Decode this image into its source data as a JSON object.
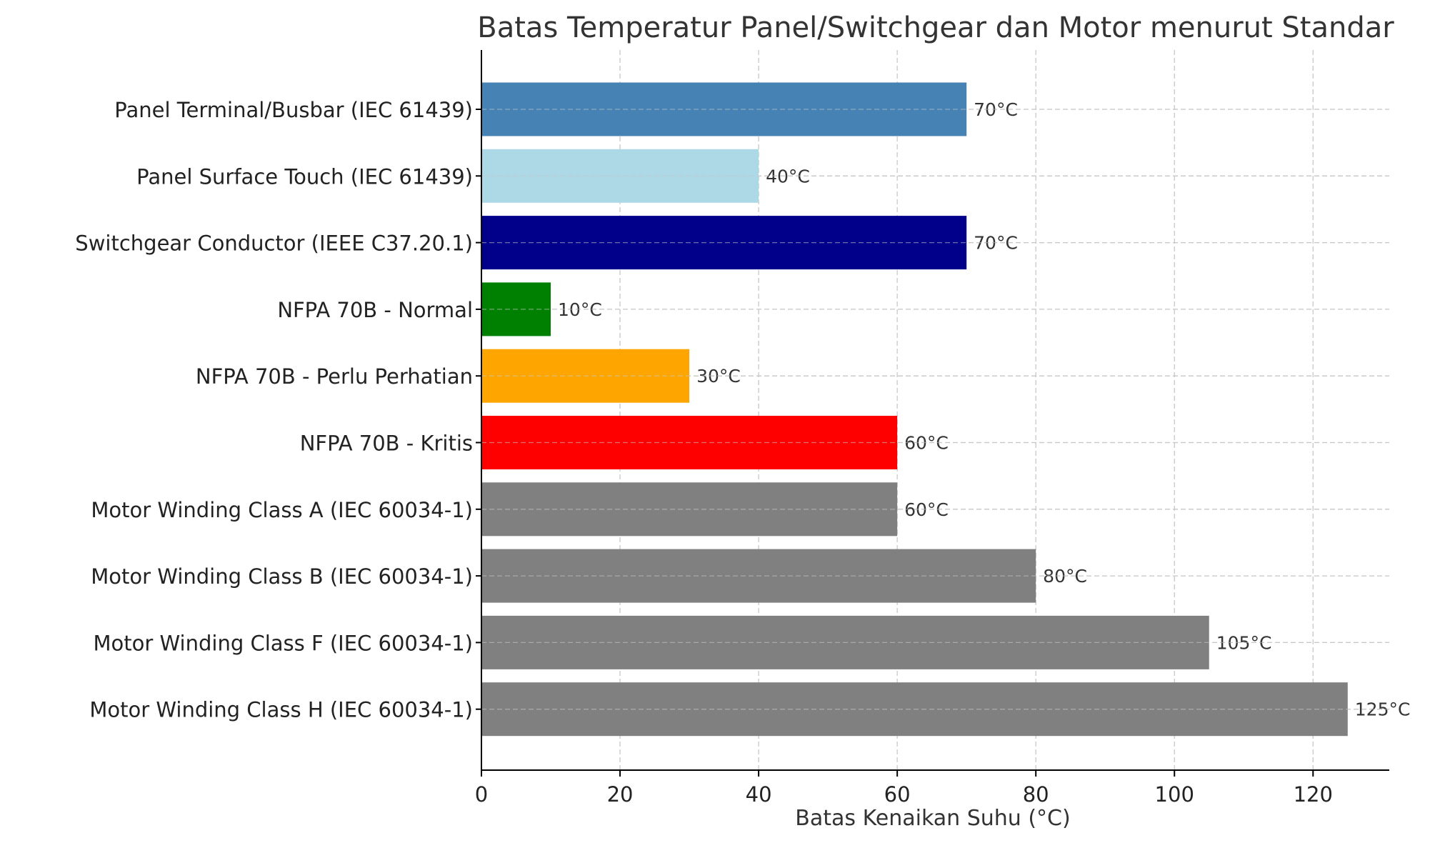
{
  "chart_data": {
    "type": "bar",
    "orientation": "horizontal",
    "title": "Batas Temperatur Panel/Switchgear dan Motor menurut Standar",
    "xlabel": "Batas Kenaikan Suhu (°C)",
    "ylabel": "",
    "xlim": [
      0,
      131
    ],
    "xticks": [
      0,
      20,
      40,
      60,
      80,
      100,
      120
    ],
    "grid": true,
    "categories": [
      "Panel Terminal/Busbar (IEC 61439)",
      "Panel Surface Touch (IEC 61439)",
      "Switchgear Conductor (IEEE C37.20.1)",
      "NFPA 70B - Normal",
      "NFPA 70B - Perlu Perhatian",
      "NFPA 70B - Kritis",
      "Motor Winding Class A (IEC 60034-1)",
      "Motor Winding Class B (IEC 60034-1)",
      "Motor Winding Class F (IEC 60034-1)",
      "Motor Winding Class H (IEC 60034-1)"
    ],
    "values": [
      70,
      40,
      70,
      10,
      30,
      60,
      60,
      80,
      105,
      125
    ],
    "value_labels": [
      "70°C",
      "40°C",
      "70°C",
      "10°C",
      "30°C",
      "60°C",
      "60°C",
      "80°C",
      "105°C",
      "125°C"
    ],
    "colors": [
      "#4682b4",
      "#add8e6",
      "#00008b",
      "#008000",
      "#ffa500",
      "#ff0000",
      "#808080",
      "#808080",
      "#808080",
      "#808080"
    ]
  }
}
